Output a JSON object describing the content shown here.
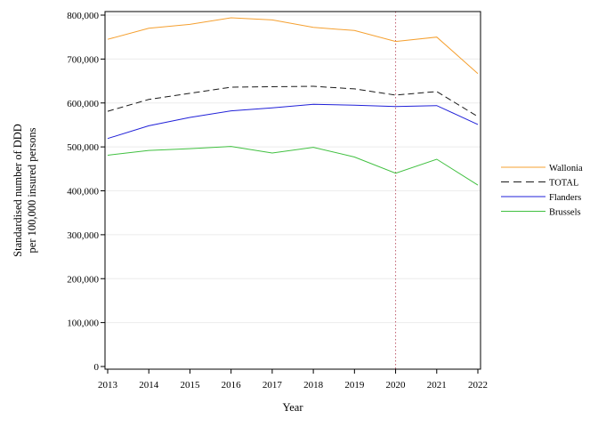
{
  "chart_data": {
    "type": "line",
    "title": "",
    "xlabel": "Year",
    "ylabel": "Standardised number of DDD per 100,000 insured persons",
    "ylabel_lines": [
      "Standardised number of DDD",
      "per 100,000 insured persons"
    ],
    "x": [
      2013,
      2014,
      2015,
      2016,
      2017,
      2018,
      2019,
      2020,
      2021,
      2022
    ],
    "x_tick_labels": [
      "2013",
      "2014",
      "2015",
      "2016",
      "2017",
      "2018",
      "2019",
      "2020",
      "2021",
      "2022"
    ],
    "ylim": [
      0,
      800000
    ],
    "y_ticks": [
      0,
      100000,
      200000,
      300000,
      400000,
      500000,
      600000,
      700000,
      800000
    ],
    "y_tick_labels": [
      "0",
      "100,000",
      "200,000",
      "300,000",
      "400,000",
      "500,000",
      "600,000",
      "700,000",
      "800,000"
    ],
    "grid": "horizontal",
    "reference_line": {
      "x": 2020,
      "color": "#c06070",
      "style": "dotted"
    },
    "legend_position": "right",
    "series": [
      {
        "name": "Wallonia",
        "color": "#f5a030",
        "dash": "none",
        "values": [
          745000,
          770000,
          779000,
          794000,
          789000,
          772000,
          765000,
          740000,
          750000,
          667000
        ]
      },
      {
        "name": "TOTAL",
        "color": "#1a1a1a",
        "dash": "7,4",
        "values": [
          581000,
          608000,
          622000,
          636000,
          637000,
          638000,
          632000,
          618000,
          626000,
          569000
        ]
      },
      {
        "name": "Flanders",
        "color": "#2020d8",
        "dash": "none",
        "values": [
          519000,
          548000,
          567000,
          582000,
          589000,
          597000,
          595000,
          592000,
          594000,
          551000
        ]
      },
      {
        "name": "Brussels",
        "color": "#40c040",
        "dash": "none",
        "values": [
          481000,
          492000,
          496000,
          501000,
          486000,
          499000,
          477000,
          440000,
          472000,
          413000
        ]
      }
    ]
  }
}
